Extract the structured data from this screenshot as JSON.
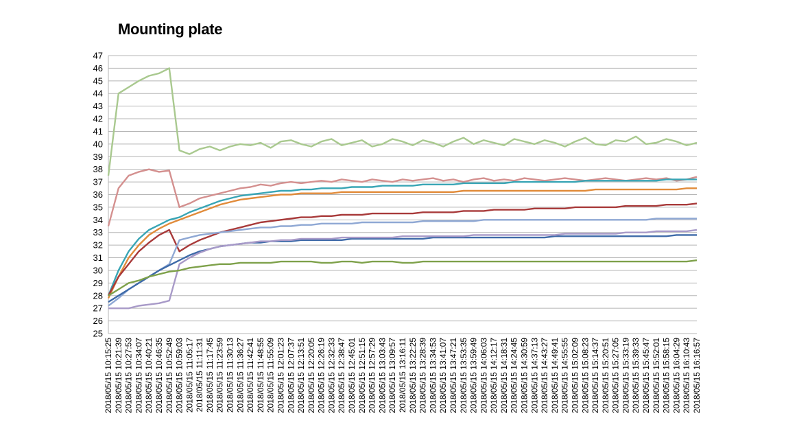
{
  "chart_data": {
    "type": "line",
    "title": "Mounting plate",
    "xlabel": "",
    "ylabel": "",
    "ylim": [
      25,
      47
    ],
    "yticks": [
      25,
      26,
      27,
      28,
      29,
      30,
      31,
      32,
      33,
      34,
      35,
      36,
      37,
      38,
      39,
      40,
      41,
      42,
      43,
      44,
      45,
      46,
      47
    ],
    "grid": "horizontal",
    "legend": "none",
    "x": [
      "2018/05/15 10:15:25",
      "2018/05/15 10:21:39",
      "2018/05/15 10:27:53",
      "2018/05/15 10:34:07",
      "2018/05/15 10:40:21",
      "2018/05/15 10:46:35",
      "2018/05/15 10:52:49",
      "2018/05/15 10:59:03",
      "2018/05/15 11:05:17",
      "2018/05/15 11:11:31",
      "2018/05/15 11:17:45",
      "2018/05/15 11:23:59",
      "2018/05/15 11:30:13",
      "2018/05/15 11:36:27",
      "2018/05/15 11:42:41",
      "2018/05/15 11:48:55",
      "2018/05/15 11:55:09",
      "2018/05/15 12:01:23",
      "2018/05/15 12:07:37",
      "2018/05/15 12:13:51",
      "2018/05/15 12:20:05",
      "2018/05/15 12:26:19",
      "2018/05/15 12:32:33",
      "2018/05/15 12:38:47",
      "2018/05/15 12:45:01",
      "2018/05/15 12:51:15",
      "2018/05/15 12:57:29",
      "2018/05/15 13:03:43",
      "2018/05/15 13:09:57",
      "2018/05/15 13:16:11",
      "2018/05/15 13:22:25",
      "2018/05/15 13:28:39",
      "2018/05/15 13:34:53",
      "2018/05/15 13:41:07",
      "2018/05/15 13:47:21",
      "2018/05/15 13:53:35",
      "2018/05/15 13:59:49",
      "2018/05/15 14:06:03",
      "2018/05/15 14:12:17",
      "2018/05/15 14:18:31",
      "2018/05/15 14:24:45",
      "2018/05/15 14:30:59",
      "2018/05/15 14:37:13",
      "2018/05/15 14:43:27",
      "2018/05/15 14:49:41",
      "2018/05/15 14:55:55",
      "2018/05/15 15:02:09",
      "2018/05/15 15:08:23",
      "2018/05/15 15:14:37",
      "2018/05/15 15:20:51",
      "2018/05/15 15:27:05",
      "2018/05/15 15:33:19",
      "2018/05/15 15:39:33",
      "2018/05/15 15:45:47",
      "2018/05/15 15:52:01",
      "2018/05/15 15:58:15",
      "2018/05/15 16:04:29",
      "2018/05/15 16:10:43",
      "2018/05/15 16:16:57"
    ],
    "series": [
      {
        "color": "#a9c98f",
        "values": [
          37.5,
          44.0,
          44.5,
          45.0,
          45.4,
          45.6,
          46.0,
          39.5,
          39.2,
          39.6,
          39.8,
          39.5,
          39.8,
          40.0,
          39.9,
          40.1,
          39.7,
          40.2,
          40.3,
          40.0,
          39.8,
          40.2,
          40.4,
          39.9,
          40.1,
          40.3,
          39.8,
          40.0,
          40.4,
          40.2,
          39.9,
          40.3,
          40.1,
          39.8,
          40.2,
          40.5,
          40.0,
          40.3,
          40.1,
          39.9,
          40.4,
          40.2,
          40.0,
          40.3,
          40.1,
          39.8,
          40.2,
          40.5,
          40.0,
          39.9,
          40.3,
          40.2,
          40.6,
          40.0,
          40.1,
          40.4,
          40.2,
          39.9,
          40.1
        ]
      },
      {
        "color": "#d4908f",
        "values": [
          33.5,
          36.5,
          37.5,
          37.8,
          38.0,
          37.8,
          37.9,
          35.0,
          35.3,
          35.7,
          35.9,
          36.1,
          36.3,
          36.5,
          36.6,
          36.8,
          36.7,
          36.9,
          37.0,
          36.9,
          37.0,
          37.1,
          37.0,
          37.2,
          37.1,
          37.0,
          37.2,
          37.1,
          37.0,
          37.2,
          37.1,
          37.2,
          37.3,
          37.1,
          37.2,
          37.0,
          37.2,
          37.3,
          37.1,
          37.2,
          37.1,
          37.3,
          37.2,
          37.1,
          37.2,
          37.3,
          37.2,
          37.1,
          37.2,
          37.3,
          37.2,
          37.1,
          37.2,
          37.3,
          37.2,
          37.3,
          37.1,
          37.2,
          37.4
        ]
      },
      {
        "color": "#38a5b5",
        "values": [
          28.0,
          30.0,
          31.5,
          32.5,
          33.2,
          33.6,
          34.0,
          34.2,
          34.6,
          34.9,
          35.2,
          35.5,
          35.7,
          35.9,
          36.0,
          36.1,
          36.2,
          36.3,
          36.3,
          36.4,
          36.4,
          36.5,
          36.5,
          36.5,
          36.6,
          36.6,
          36.6,
          36.7,
          36.7,
          36.7,
          36.7,
          36.8,
          36.8,
          36.8,
          36.8,
          36.9,
          36.9,
          36.9,
          36.9,
          36.9,
          37.0,
          37.0,
          37.0,
          37.0,
          37.0,
          37.0,
          37.0,
          37.1,
          37.1,
          37.1,
          37.1,
          37.1,
          37.1,
          37.1,
          37.1,
          37.2,
          37.2,
          37.2,
          37.2
        ]
      },
      {
        "color": "#e18b3a",
        "values": [
          27.8,
          29.5,
          31.0,
          32.0,
          32.8,
          33.3,
          33.7,
          34.0,
          34.3,
          34.6,
          34.9,
          35.2,
          35.4,
          35.6,
          35.7,
          35.8,
          35.9,
          36.0,
          36.0,
          36.1,
          36.1,
          36.1,
          36.1,
          36.2,
          36.2,
          36.2,
          36.2,
          36.2,
          36.2,
          36.2,
          36.2,
          36.2,
          36.2,
          36.2,
          36.2,
          36.3,
          36.3,
          36.3,
          36.3,
          36.3,
          36.3,
          36.3,
          36.3,
          36.3,
          36.3,
          36.3,
          36.3,
          36.3,
          36.4,
          36.4,
          36.4,
          36.4,
          36.4,
          36.4,
          36.4,
          36.4,
          36.4,
          36.5,
          36.5
        ]
      },
      {
        "color": "#a83a3a",
        "values": [
          28.0,
          29.5,
          30.5,
          31.5,
          32.2,
          32.8,
          33.2,
          31.5,
          32.0,
          32.4,
          32.7,
          33.0,
          33.2,
          33.4,
          33.6,
          33.8,
          33.9,
          34.0,
          34.1,
          34.2,
          34.2,
          34.3,
          34.3,
          34.4,
          34.4,
          34.4,
          34.5,
          34.5,
          34.5,
          34.5,
          34.5,
          34.6,
          34.6,
          34.6,
          34.6,
          34.7,
          34.7,
          34.7,
          34.8,
          34.8,
          34.8,
          34.8,
          34.9,
          34.9,
          34.9,
          34.9,
          35.0,
          35.0,
          35.0,
          35.0,
          35.0,
          35.1,
          35.1,
          35.1,
          35.1,
          35.2,
          35.2,
          35.2,
          35.3
        ]
      },
      {
        "color": "#8fa8d4",
        "values": [
          27.2,
          27.8,
          28.5,
          29.0,
          29.5,
          30.0,
          30.5,
          32.4,
          32.6,
          32.8,
          32.9,
          33.0,
          33.1,
          33.2,
          33.3,
          33.4,
          33.4,
          33.5,
          33.5,
          33.6,
          33.6,
          33.7,
          33.7,
          33.7,
          33.7,
          33.8,
          33.8,
          33.8,
          33.8,
          33.8,
          33.8,
          33.9,
          33.9,
          33.9,
          33.9,
          33.9,
          33.9,
          34.0,
          34.0,
          34.0,
          34.0,
          34.0,
          34.0,
          34.0,
          34.0,
          34.0,
          34.0,
          34.0,
          34.0,
          34.0,
          34.0,
          34.0,
          34.0,
          34.0,
          34.1,
          34.1,
          34.1,
          34.1,
          34.1
        ]
      },
      {
        "color": "#3e6aa8",
        "values": [
          27.5,
          28.0,
          28.5,
          29.0,
          29.5,
          30.0,
          30.4,
          30.8,
          31.2,
          31.5,
          31.7,
          31.9,
          32.0,
          32.1,
          32.2,
          32.2,
          32.3,
          32.3,
          32.3,
          32.4,
          32.4,
          32.4,
          32.4,
          32.4,
          32.5,
          32.5,
          32.5,
          32.5,
          32.5,
          32.5,
          32.5,
          32.5,
          32.6,
          32.6,
          32.6,
          32.6,
          32.6,
          32.6,
          32.6,
          32.6,
          32.6,
          32.6,
          32.6,
          32.6,
          32.7,
          32.7,
          32.7,
          32.7,
          32.7,
          32.7,
          32.7,
          32.7,
          32.7,
          32.7,
          32.7,
          32.7,
          32.8,
          32.8,
          32.8
        ]
      },
      {
        "color": "#a89ac8",
        "values": [
          27.0,
          27.0,
          27.0,
          27.2,
          27.3,
          27.4,
          27.6,
          30.5,
          31.0,
          31.4,
          31.7,
          31.9,
          32.0,
          32.1,
          32.2,
          32.3,
          32.3,
          32.4,
          32.4,
          32.5,
          32.5,
          32.5,
          32.5,
          32.6,
          32.6,
          32.6,
          32.6,
          32.6,
          32.6,
          32.7,
          32.7,
          32.7,
          32.7,
          32.7,
          32.7,
          32.7,
          32.8,
          32.8,
          32.8,
          32.8,
          32.8,
          32.8,
          32.8,
          32.8,
          32.8,
          32.9,
          32.9,
          32.9,
          32.9,
          32.9,
          32.9,
          33.0,
          33.0,
          33.0,
          33.1,
          33.1,
          33.1,
          33.1,
          33.2
        ]
      },
      {
        "color": "#7ea14a",
        "values": [
          28.0,
          28.5,
          29.0,
          29.2,
          29.5,
          29.7,
          29.9,
          30.0,
          30.2,
          30.3,
          30.4,
          30.5,
          30.5,
          30.6,
          30.6,
          30.6,
          30.6,
          30.7,
          30.7,
          30.7,
          30.7,
          30.6,
          30.6,
          30.7,
          30.7,
          30.6,
          30.7,
          30.7,
          30.7,
          30.6,
          30.6,
          30.7,
          30.7,
          30.7,
          30.7,
          30.7,
          30.7,
          30.7,
          30.7,
          30.7,
          30.7,
          30.7,
          30.7,
          30.7,
          30.7,
          30.7,
          30.7,
          30.7,
          30.7,
          30.7,
          30.7,
          30.7,
          30.7,
          30.7,
          30.7,
          30.7,
          30.7,
          30.7,
          30.8
        ]
      }
    ]
  }
}
